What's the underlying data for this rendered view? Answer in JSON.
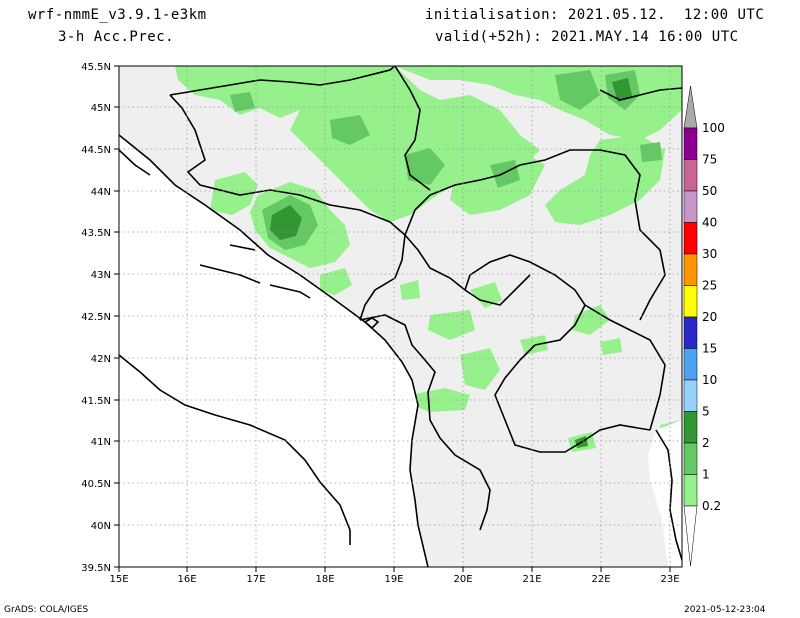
{
  "header": {
    "model": "wrf-nmmE_v3.9.1-e3km",
    "field": "3-h Acc.Prec.",
    "init": "initialisation: 2021.05.12.  12:00 UTC",
    "valid": "valid(+52h): 2021.MAY.14 16:00 UTC"
  },
  "footer": {
    "credit": "GrADS: COLA/IGES",
    "timestamp": "2021-05-12-23:04"
  },
  "map": {
    "lat_labels": [
      "45.5N",
      "45N",
      "44.5N",
      "44N",
      "43.5N",
      "43N",
      "42.5N",
      "42N",
      "41.5N",
      "41N",
      "40.5N",
      "40N",
      "39.5N"
    ],
    "lon_labels": [
      "15E",
      "16E",
      "17E",
      "18E",
      "19E",
      "20E",
      "21E",
      "22E",
      "23E"
    ]
  },
  "colorbar": {
    "labels": [
      "100",
      "75",
      "50",
      "40",
      "30",
      "25",
      "20",
      "15",
      "10",
      "5",
      "2",
      "1",
      "0.2"
    ],
    "colors": [
      "#aaaaaa",
      "#8c0090",
      "#c86496",
      "#c896c8",
      "#ff0000",
      "#ff9600",
      "#ffff00",
      "#2828c8",
      "#4ea0f0",
      "#96d2fa",
      "#329632",
      "#64c864",
      "#96f08c"
    ]
  },
  "colors": {
    "land": "#efefef",
    "precip_light": "#96f08c",
    "precip_mid": "#64c864",
    "precip_heavy": "#329632"
  }
}
